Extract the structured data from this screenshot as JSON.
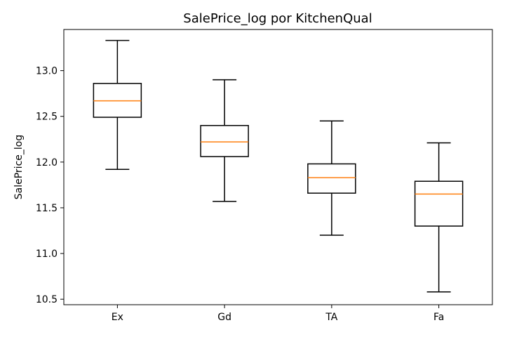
{
  "chart_data": {
    "type": "box",
    "title": "SalePrice_log por KitchenQual",
    "xlabel": "",
    "ylabel": "SalePrice_log",
    "categories": [
      "Ex",
      "Gd",
      "TA",
      "Fa"
    ],
    "boxes": [
      {
        "category": "Ex",
        "whisker_low": 11.92,
        "q1": 12.49,
        "median": 12.67,
        "q3": 12.86,
        "whisker_high": 13.33
      },
      {
        "category": "Gd",
        "whisker_low": 11.57,
        "q1": 12.06,
        "median": 12.22,
        "q3": 12.4,
        "whisker_high": 12.9
      },
      {
        "category": "TA",
        "whisker_low": 11.2,
        "q1": 11.66,
        "median": 11.83,
        "q3": 11.98,
        "whisker_high": 12.45
      },
      {
        "category": "Fa",
        "whisker_low": 10.58,
        "q1": 11.3,
        "median": 11.65,
        "q3": 11.79,
        "whisker_high": 12.21
      }
    ],
    "ylim": [
      10.44,
      13.45
    ],
    "yticks": [
      10.5,
      11.0,
      11.5,
      12.0,
      12.5,
      13.0
    ],
    "ytick_labels": [
      "10.5",
      "11.0",
      "11.5",
      "12.0",
      "12.5",
      "13.0"
    ],
    "grid": false,
    "legend": "none",
    "colors": {
      "box": "#000000",
      "median": "#ff7f0e",
      "background": "#ffffff"
    }
  }
}
